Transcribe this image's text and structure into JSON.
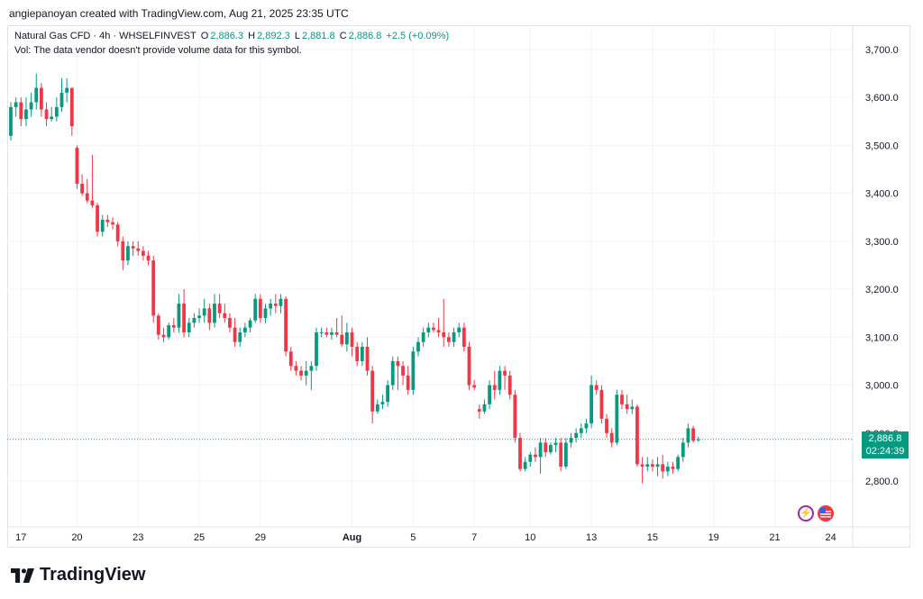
{
  "caption": "angiepanoyan created with TradingView.com, Aug 21, 2025 23:35 UTC",
  "header": {
    "symbol": "Natural Gas CFD · 4h · WHSELFINVEST",
    "o_label": "O",
    "o_value": "2,886.3",
    "h_label": "H",
    "h_value": "2,892.3",
    "l_label": "L",
    "l_value": "2,881.8",
    "c_label": "C",
    "c_value": "2,886.8",
    "change": "+2.5 (+0.09%)",
    "vol_note": "Vol: The data vendor doesn't provide volume data for this symbol."
  },
  "price_label": {
    "price": "2,886.8",
    "countdown": "02:24:39"
  },
  "logo_text": "TradingView",
  "colors": {
    "up": "#089981",
    "down": "#f23645",
    "grid": "#f0f3fa",
    "price_line": "#089981"
  },
  "chart_data": {
    "type": "candlestick",
    "title": "Natural Gas CFD · 4h · WHSELFINVEST",
    "ylim": [
      2720,
      3750
    ],
    "y_ticks": [
      2800,
      2900,
      3000,
      3100,
      3200,
      3300,
      3400,
      3500,
      3600,
      3700
    ],
    "y_tick_labels": [
      "2,800.0",
      "2,900.0",
      "3,000.0",
      "3,100.0",
      "3,200.0",
      "3,300.0",
      "3,400.0",
      "3,500.0",
      "3,600.0",
      "3,700.0"
    ],
    "x_labels": [
      {
        "label": "17",
        "idx": 2
      },
      {
        "label": "20",
        "idx": 13
      },
      {
        "label": "23",
        "idx": 25
      },
      {
        "label": "25",
        "idx": 37
      },
      {
        "label": "29",
        "idx": 49
      },
      {
        "label": "Aug",
        "idx": 67,
        "bold": true
      },
      {
        "label": "5",
        "idx": 79
      },
      {
        "label": "7",
        "idx": 91
      },
      {
        "label": "10",
        "idx": 102
      },
      {
        "label": "13",
        "idx": 114
      },
      {
        "label": "15",
        "idx": 126
      },
      {
        "label": "19",
        "idx": 138
      },
      {
        "label": "21",
        "idx": 150
      },
      {
        "label": "24",
        "idx": 161
      }
    ],
    "last_price": 2886.8,
    "candles": [
      {
        "o": 3520,
        "h": 3590,
        "l": 3510,
        "c": 3580
      },
      {
        "o": 3580,
        "h": 3600,
        "l": 3560,
        "c": 3590
      },
      {
        "o": 3590,
        "h": 3600,
        "l": 3540,
        "c": 3555
      },
      {
        "o": 3555,
        "h": 3600,
        "l": 3540,
        "c": 3575
      },
      {
        "o": 3575,
        "h": 3610,
        "l": 3560,
        "c": 3590
      },
      {
        "o": 3590,
        "h": 3650,
        "l": 3575,
        "c": 3620
      },
      {
        "o": 3620,
        "h": 3630,
        "l": 3560,
        "c": 3575
      },
      {
        "o": 3575,
        "h": 3590,
        "l": 3540,
        "c": 3555
      },
      {
        "o": 3555,
        "h": 3580,
        "l": 3550,
        "c": 3560
      },
      {
        "o": 3560,
        "h": 3600,
        "l": 3550,
        "c": 3580
      },
      {
        "o": 3580,
        "h": 3640,
        "l": 3570,
        "c": 3610
      },
      {
        "o": 3610,
        "h": 3640,
        "l": 3590,
        "c": 3620
      },
      {
        "o": 3620,
        "h": 3620,
        "l": 3520,
        "c": 3540
      },
      {
        "o": 3495,
        "h": 3500,
        "l": 3410,
        "c": 3420
      },
      {
        "o": 3420,
        "h": 3440,
        "l": 3395,
        "c": 3400
      },
      {
        "o": 3400,
        "h": 3430,
        "l": 3380,
        "c": 3385
      },
      {
        "o": 3385,
        "h": 3480,
        "l": 3370,
        "c": 3375
      },
      {
        "o": 3375,
        "h": 3380,
        "l": 3310,
        "c": 3320
      },
      {
        "o": 3320,
        "h": 3355,
        "l": 3310,
        "c": 3345
      },
      {
        "o": 3345,
        "h": 3355,
        "l": 3330,
        "c": 3340
      },
      {
        "o": 3340,
        "h": 3350,
        "l": 3325,
        "c": 3335
      },
      {
        "o": 3335,
        "h": 3340,
        "l": 3290,
        "c": 3300
      },
      {
        "o": 3300,
        "h": 3310,
        "l": 3240,
        "c": 3260
      },
      {
        "o": 3260,
        "h": 3300,
        "l": 3250,
        "c": 3290
      },
      {
        "o": 3290,
        "h": 3300,
        "l": 3270,
        "c": 3285
      },
      {
        "o": 3285,
        "h": 3300,
        "l": 3270,
        "c": 3280
      },
      {
        "o": 3280,
        "h": 3290,
        "l": 3260,
        "c": 3270
      },
      {
        "o": 3270,
        "h": 3280,
        "l": 3250,
        "c": 3260
      },
      {
        "o": 3260,
        "h": 3270,
        "l": 3130,
        "c": 3145
      },
      {
        "o": 3145,
        "h": 3150,
        "l": 3095,
        "c": 3105
      },
      {
        "o": 3105,
        "h": 3120,
        "l": 3090,
        "c": 3100
      },
      {
        "o": 3100,
        "h": 3130,
        "l": 3095,
        "c": 3125
      },
      {
        "o": 3125,
        "h": 3140,
        "l": 3110,
        "c": 3120
      },
      {
        "o": 3120,
        "h": 3190,
        "l": 3110,
        "c": 3170
      },
      {
        "o": 3170,
        "h": 3200,
        "l": 3100,
        "c": 3110
      },
      {
        "o": 3110,
        "h": 3140,
        "l": 3100,
        "c": 3130
      },
      {
        "o": 3130,
        "h": 3150,
        "l": 3120,
        "c": 3140
      },
      {
        "o": 3140,
        "h": 3160,
        "l": 3130,
        "c": 3145
      },
      {
        "o": 3145,
        "h": 3180,
        "l": 3130,
        "c": 3160
      },
      {
        "o": 3160,
        "h": 3170,
        "l": 3115,
        "c": 3130
      },
      {
        "o": 3130,
        "h": 3190,
        "l": 3120,
        "c": 3170
      },
      {
        "o": 3170,
        "h": 3190,
        "l": 3140,
        "c": 3150
      },
      {
        "o": 3150,
        "h": 3170,
        "l": 3130,
        "c": 3140
      },
      {
        "o": 3140,
        "h": 3150,
        "l": 3110,
        "c": 3120
      },
      {
        "o": 3120,
        "h": 3140,
        "l": 3080,
        "c": 3090
      },
      {
        "o": 3090,
        "h": 3120,
        "l": 3080,
        "c": 3110
      },
      {
        "o": 3110,
        "h": 3130,
        "l": 3100,
        "c": 3120
      },
      {
        "o": 3120,
        "h": 3140,
        "l": 3110,
        "c": 3135
      },
      {
        "o": 3135,
        "h": 3190,
        "l": 3130,
        "c": 3180
      },
      {
        "o": 3180,
        "h": 3190,
        "l": 3130,
        "c": 3140
      },
      {
        "o": 3140,
        "h": 3170,
        "l": 3130,
        "c": 3160
      },
      {
        "o": 3160,
        "h": 3180,
        "l": 3145,
        "c": 3170
      },
      {
        "o": 3170,
        "h": 3190,
        "l": 3150,
        "c": 3165
      },
      {
        "o": 3165,
        "h": 3190,
        "l": 3150,
        "c": 3180
      },
      {
        "o": 3180,
        "h": 3185,
        "l": 3060,
        "c": 3070
      },
      {
        "o": 3070,
        "h": 3080,
        "l": 3030,
        "c": 3040
      },
      {
        "o": 3040,
        "h": 3050,
        "l": 3020,
        "c": 3030
      },
      {
        "o": 3030,
        "h": 3040,
        "l": 3010,
        "c": 3020
      },
      {
        "o": 3020,
        "h": 3050,
        "l": 3000,
        "c": 3030
      },
      {
        "o": 3030,
        "h": 3050,
        "l": 2990,
        "c": 3040
      },
      {
        "o": 3040,
        "h": 3120,
        "l": 3030,
        "c": 3110
      },
      {
        "o": 3110,
        "h": 3120,
        "l": 3100,
        "c": 3110
      },
      {
        "o": 3110,
        "h": 3120,
        "l": 3100,
        "c": 3105
      },
      {
        "o": 3105,
        "h": 3120,
        "l": 3095,
        "c": 3110
      },
      {
        "o": 3110,
        "h": 3140,
        "l": 3100,
        "c": 3105
      },
      {
        "o": 3105,
        "h": 3145,
        "l": 3080,
        "c": 3085
      },
      {
        "o": 3085,
        "h": 3130,
        "l": 3070,
        "c": 3110
      },
      {
        "o": 3110,
        "h": 3120,
        "l": 3060,
        "c": 3080
      },
      {
        "o": 3080,
        "h": 3090,
        "l": 3040,
        "c": 3050
      },
      {
        "o": 3050,
        "h": 3090,
        "l": 3040,
        "c": 3080
      },
      {
        "o": 3080,
        "h": 3100,
        "l": 3020,
        "c": 3030
      },
      {
        "o": 3030,
        "h": 3040,
        "l": 2920,
        "c": 2945
      },
      {
        "o": 2945,
        "h": 2970,
        "l": 2940,
        "c": 2960
      },
      {
        "o": 2960,
        "h": 2980,
        "l": 2950,
        "c": 2965
      },
      {
        "o": 2965,
        "h": 3010,
        "l": 2955,
        "c": 3000
      },
      {
        "o": 3000,
        "h": 3060,
        "l": 2990,
        "c": 3050
      },
      {
        "o": 3050,
        "h": 3060,
        "l": 2990,
        "c": 3040
      },
      {
        "o": 3040,
        "h": 3050,
        "l": 3000,
        "c": 3020
      },
      {
        "o": 3020,
        "h": 3040,
        "l": 2980,
        "c": 2990
      },
      {
        "o": 2990,
        "h": 3080,
        "l": 2980,
        "c": 3070
      },
      {
        "o": 3070,
        "h": 3100,
        "l": 3060,
        "c": 3090
      },
      {
        "o": 3090,
        "h": 3120,
        "l": 3080,
        "c": 3110
      },
      {
        "o": 3110,
        "h": 3130,
        "l": 3100,
        "c": 3120
      },
      {
        "o": 3120,
        "h": 3130,
        "l": 3110,
        "c": 3115
      },
      {
        "o": 3115,
        "h": 3140,
        "l": 3100,
        "c": 3110
      },
      {
        "o": 3110,
        "h": 3180,
        "l": 3080,
        "c": 3100
      },
      {
        "o": 3100,
        "h": 3110,
        "l": 3080,
        "c": 3090
      },
      {
        "o": 3090,
        "h": 3120,
        "l": 3080,
        "c": 3110
      },
      {
        "o": 3110,
        "h": 3130,
        "l": 3100,
        "c": 3120
      },
      {
        "o": 3120,
        "h": 3130,
        "l": 3070,
        "c": 3080
      },
      {
        "o": 3080,
        "h": 3090,
        "l": 2990,
        "c": 3000
      },
      {
        "o": 3000,
        "h": 3010,
        "l": 2990,
        "c": 2995
      },
      {
        "o": 2950,
        "h": 2960,
        "l": 2930,
        "c": 2945
      },
      {
        "o": 2945,
        "h": 2970,
        "l": 2940,
        "c": 2960
      },
      {
        "o": 2960,
        "h": 3010,
        "l": 2950,
        "c": 3000
      },
      {
        "o": 3000,
        "h": 3030,
        "l": 2970,
        "c": 2990
      },
      {
        "o": 2990,
        "h": 3040,
        "l": 2980,
        "c": 3030
      },
      {
        "o": 3030,
        "h": 3040,
        "l": 2990,
        "c": 3020
      },
      {
        "o": 3020,
        "h": 3030,
        "l": 2970,
        "c": 2980
      },
      {
        "o": 2980,
        "h": 2990,
        "l": 2880,
        "c": 2890
      },
      {
        "o": 2890,
        "h": 2900,
        "l": 2820,
        "c": 2825
      },
      {
        "o": 2825,
        "h": 2850,
        "l": 2820,
        "c": 2840
      },
      {
        "o": 2840,
        "h": 2860,
        "l": 2830,
        "c": 2855
      },
      {
        "o": 2855,
        "h": 2870,
        "l": 2840,
        "c": 2850
      },
      {
        "o": 2850,
        "h": 2890,
        "l": 2815,
        "c": 2880
      },
      {
        "o": 2880,
        "h": 2890,
        "l": 2850,
        "c": 2860
      },
      {
        "o": 2860,
        "h": 2880,
        "l": 2855,
        "c": 2875
      },
      {
        "o": 2875,
        "h": 2890,
        "l": 2860,
        "c": 2880
      },
      {
        "o": 2880,
        "h": 2890,
        "l": 2820,
        "c": 2830
      },
      {
        "o": 2830,
        "h": 2890,
        "l": 2825,
        "c": 2880
      },
      {
        "o": 2880,
        "h": 2900,
        "l": 2870,
        "c": 2890
      },
      {
        "o": 2890,
        "h": 2910,
        "l": 2880,
        "c": 2900
      },
      {
        "o": 2900,
        "h": 2920,
        "l": 2890,
        "c": 2910
      },
      {
        "o": 2910,
        "h": 2930,
        "l": 2900,
        "c": 2920
      },
      {
        "o": 2920,
        "h": 3020,
        "l": 2910,
        "c": 3000
      },
      {
        "o": 3000,
        "h": 3010,
        "l": 2980,
        "c": 2990
      },
      {
        "o": 2990,
        "h": 3000,
        "l": 2920,
        "c": 2930
      },
      {
        "o": 2930,
        "h": 2940,
        "l": 2890,
        "c": 2900
      },
      {
        "o": 2900,
        "h": 2910,
        "l": 2870,
        "c": 2880
      },
      {
        "o": 2880,
        "h": 2990,
        "l": 2875,
        "c": 2980
      },
      {
        "o": 2980,
        "h": 2990,
        "l": 2950,
        "c": 2960
      },
      {
        "o": 2960,
        "h": 2980,
        "l": 2940,
        "c": 2950
      },
      {
        "o": 2950,
        "h": 2970,
        "l": 2940,
        "c": 2955
      },
      {
        "o": 2955,
        "h": 2960,
        "l": 2830,
        "c": 2835
      },
      {
        "o": 2835,
        "h": 2850,
        "l": 2795,
        "c": 2830
      },
      {
        "o": 2830,
        "h": 2850,
        "l": 2820,
        "c": 2835
      },
      {
        "o": 2835,
        "h": 2845,
        "l": 2820,
        "c": 2830
      },
      {
        "o": 2830,
        "h": 2850,
        "l": 2810,
        "c": 2835
      },
      {
        "o": 2835,
        "h": 2855,
        "l": 2805,
        "c": 2820
      },
      {
        "o": 2820,
        "h": 2840,
        "l": 2810,
        "c": 2830
      },
      {
        "o": 2830,
        "h": 2840,
        "l": 2815,
        "c": 2825
      },
      {
        "o": 2825,
        "h": 2855,
        "l": 2820,
        "c": 2850
      },
      {
        "o": 2850,
        "h": 2890,
        "l": 2840,
        "c": 2880
      },
      {
        "o": 2880,
        "h": 2920,
        "l": 2870,
        "c": 2910
      },
      {
        "o": 2910,
        "h": 2915,
        "l": 2880,
        "c": 2884
      },
      {
        "o": 2886.3,
        "h": 2892.3,
        "l": 2881.8,
        "c": 2886.8
      }
    ]
  }
}
